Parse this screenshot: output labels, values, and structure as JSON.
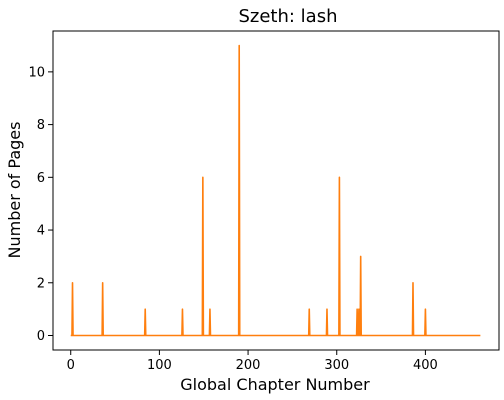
{
  "chart_data": {
    "type": "line",
    "title": "Szeth: lash",
    "xlabel": "Global Chapter Number",
    "ylabel": "Number of Pages",
    "xlim": [
      -20,
      483
    ],
    "ylim": [
      -0.55,
      11.55
    ],
    "xticks": [
      0,
      100,
      200,
      300,
      400
    ],
    "yticks": [
      0,
      2,
      4,
      6,
      8,
      10
    ],
    "grid": false,
    "legend": "none",
    "color": "#ff7f0e",
    "x_range": [
      0,
      462
    ],
    "baseline": 0,
    "spikes": [
      {
        "x": 2,
        "y": 2
      },
      {
        "x": 36,
        "y": 2
      },
      {
        "x": 84,
        "y": 1
      },
      {
        "x": 126,
        "y": 1
      },
      {
        "x": 149,
        "y": 6
      },
      {
        "x": 157,
        "y": 1
      },
      {
        "x": 190,
        "y": 11
      },
      {
        "x": 269,
        "y": 1
      },
      {
        "x": 289,
        "y": 1
      },
      {
        "x": 303,
        "y": 6
      },
      {
        "x": 323,
        "y": 1
      },
      {
        "x": 325,
        "y": 1
      },
      {
        "x": 327,
        "y": 3
      },
      {
        "x": 386,
        "y": 2
      },
      {
        "x": 400,
        "y": 1
      }
    ]
  }
}
